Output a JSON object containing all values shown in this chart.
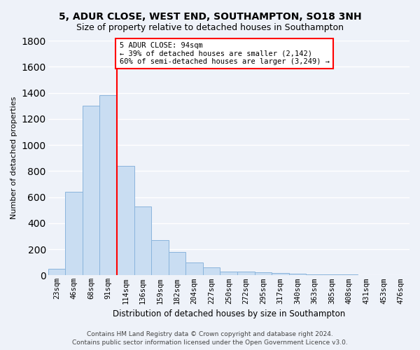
{
  "title1": "5, ADUR CLOSE, WEST END, SOUTHAMPTON, SO18 3NH",
  "title2": "Size of property relative to detached houses in Southampton",
  "xlabel": "Distribution of detached houses by size in Southampton",
  "ylabel": "Number of detached properties",
  "categories": [
    "23sqm",
    "46sqm",
    "68sqm",
    "91sqm",
    "114sqm",
    "136sqm",
    "159sqm",
    "182sqm",
    "204sqm",
    "227sqm",
    "250sqm",
    "272sqm",
    "295sqm",
    "317sqm",
    "340sqm",
    "363sqm",
    "385sqm",
    "408sqm",
    "431sqm",
    "453sqm",
    "476sqm"
  ],
  "values": [
    50,
    640,
    1300,
    1380,
    840,
    530,
    270,
    180,
    100,
    60,
    30,
    30,
    25,
    20,
    15,
    10,
    5,
    5,
    3,
    2,
    2
  ],
  "bar_color": "#c9ddf2",
  "bar_edge_color": "#8ab4dc",
  "annotation_text": "5 ADUR CLOSE: 94sqm\n← 39% of detached houses are smaller (2,142)\n60% of semi-detached houses are larger (3,249) →",
  "annotation_box_color": "white",
  "annotation_box_edge": "red",
  "vline_color": "red",
  "ylim": [
    0,
    1800
  ],
  "yticks": [
    0,
    200,
    400,
    600,
    800,
    1000,
    1200,
    1400,
    1600,
    1800
  ],
  "footer1": "Contains HM Land Registry data © Crown copyright and database right 2024.",
  "footer2": "Contains public sector information licensed under the Open Government Licence v3.0.",
  "background_color": "#eef2f9",
  "grid_color": "white",
  "title1_fontsize": 10,
  "title2_fontsize": 9,
  "xlabel_fontsize": 8.5,
  "ylabel_fontsize": 8,
  "tick_fontsize": 7.5,
  "footer_fontsize": 6.5,
  "annotation_fontsize": 7.5,
  "vline_x_index": 3.5
}
